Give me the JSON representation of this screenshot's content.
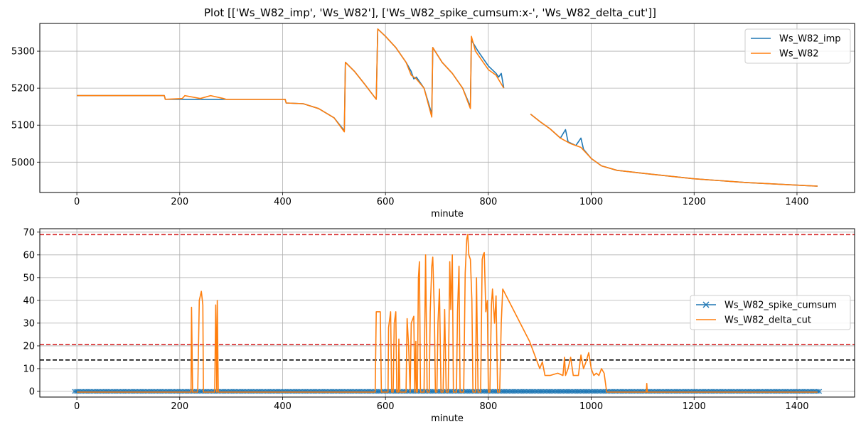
{
  "figure_title": "Plot [['Ws_W82_imp', 'Ws_W82'], ['Ws_W82_spike_cumsum:x-', 'Ws_W82_delta_cut']]",
  "colors": {
    "blue": "#1f77b4",
    "orange": "#ff7f0e",
    "red": "#d62728",
    "black": "#000000",
    "grid": "#b0b0b0"
  },
  "chart_data": [
    {
      "type": "line",
      "xlabel": "minute",
      "ylabel": "",
      "xlim": [
        -72,
        1512
      ],
      "ylim": [
        4918,
        5375
      ],
      "xticks": [
        0,
        200,
        400,
        600,
        800,
        1000,
        1200,
        1400
      ],
      "yticks": [
        5000,
        5100,
        5200,
        5300
      ],
      "grid": true,
      "legend": "top-right",
      "series": [
        {
          "name": "Ws_W82_imp",
          "color": "#1f77b4",
          "points": [
            [
              0,
              5180
            ],
            [
              170,
              5180
            ],
            [
              172,
              5170
            ],
            [
              405,
              5170
            ],
            [
              407,
              5160
            ],
            [
              440,
              5158
            ],
            [
              470,
              5145
            ],
            [
              500,
              5120
            ],
            [
              520,
              5085
            ],
            [
              522,
              5270
            ],
            [
              540,
              5245
            ],
            [
              560,
              5210
            ],
            [
              582,
              5170
            ],
            [
              585,
              5360
            ],
            [
              600,
              5340
            ],
            [
              620,
              5310
            ],
            [
              640,
              5270
            ],
            [
              650,
              5245
            ],
            [
              655,
              5225
            ],
            [
              660,
              5230
            ],
            [
              675,
              5200
            ],
            [
              690,
              5130
            ],
            [
              692,
              5310
            ],
            [
              710,
              5270
            ],
            [
              730,
              5240
            ],
            [
              750,
              5200
            ],
            [
              765,
              5150
            ],
            [
              767,
              5330
            ],
            [
              780,
              5300
            ],
            [
              800,
              5260
            ],
            [
              815,
              5240
            ],
            [
              820,
              5230
            ],
            [
              825,
              5240
            ],
            [
              830,
              5200
            ],
            [
              832,
              null
            ],
            [
              880,
              null
            ],
            [
              882,
              5130
            ],
            [
              900,
              5110
            ],
            [
              920,
              5090
            ],
            [
              940,
              5065
            ],
            [
              950,
              5088
            ],
            [
              955,
              5055
            ],
            [
              970,
              5045
            ],
            [
              980,
              5065
            ],
            [
              985,
              5035
            ],
            [
              1000,
              5010
            ],
            [
              1020,
              4990
            ],
            [
              1050,
              4978
            ],
            [
              1100,
              4970
            ],
            [
              1200,
              4955
            ],
            [
              1300,
              4945
            ],
            [
              1440,
              4935
            ]
          ]
        },
        {
          "name": "Ws_W82",
          "color": "#ff7f0e",
          "points": [
            [
              0,
              5180
            ],
            [
              170,
              5180
            ],
            [
              172,
              5170
            ],
            [
              205,
              5172
            ],
            [
              210,
              5180
            ],
            [
              240,
              5172
            ],
            [
              260,
              5180
            ],
            [
              285,
              5172
            ],
            [
              290,
              5170
            ],
            [
              405,
              5170
            ],
            [
              407,
              5160
            ],
            [
              440,
              5158
            ],
            [
              470,
              5145
            ],
            [
              500,
              5120
            ],
            [
              520,
              5082
            ],
            [
              522,
              5270
            ],
            [
              540,
              5245
            ],
            [
              560,
              5210
            ],
            [
              582,
              5170
            ],
            [
              585,
              5360
            ],
            [
              600,
              5340
            ],
            [
              620,
              5310
            ],
            [
              640,
              5270
            ],
            [
              650,
              5235
            ],
            [
              660,
              5225
            ],
            [
              675,
              5200
            ],
            [
              690,
              5122
            ],
            [
              692,
              5310
            ],
            [
              710,
              5270
            ],
            [
              730,
              5240
            ],
            [
              750,
              5200
            ],
            [
              765,
              5145
            ],
            [
              767,
              5340
            ],
            [
              775,
              5300
            ],
            [
              790,
              5270
            ],
            [
              800,
              5250
            ],
            [
              815,
              5235
            ],
            [
              830,
              5200
            ],
            [
              832,
              null
            ],
            [
              880,
              null
            ],
            [
              882,
              5130
            ],
            [
              900,
              5110
            ],
            [
              920,
              5090
            ],
            [
              940,
              5065
            ],
            [
              960,
              5050
            ],
            [
              980,
              5040
            ],
            [
              1000,
              5010
            ],
            [
              1020,
              4990
            ],
            [
              1050,
              4978
            ],
            [
              1100,
              4970
            ],
            [
              1200,
              4955
            ],
            [
              1300,
              4945
            ],
            [
              1440,
              4935
            ]
          ]
        }
      ]
    },
    {
      "type": "line",
      "xlabel": "minute",
      "ylabel": "",
      "xlim": [
        -72,
        1512
      ],
      "ylim": [
        -2.5,
        71.5
      ],
      "xticks": [
        0,
        200,
        400,
        600,
        800,
        1000,
        1200,
        1400
      ],
      "yticks": [
        0,
        10,
        20,
        30,
        40,
        50,
        60,
        70
      ],
      "grid": true,
      "legend": "center-right",
      "hlines": [
        {
          "y": 68.9,
          "color": "#d62728",
          "style": "dashed"
        },
        {
          "y": 20.6,
          "color": "#d62728",
          "style": "dashed"
        },
        {
          "y": 13.8,
          "color": "#000000",
          "style": "dashed"
        }
      ],
      "series": [
        {
          "name": "Ws_W82_spike_cumsum",
          "color": "#1f77b4",
          "marker": "x",
          "x_range": [
            -5,
            1445
          ],
          "y": 0
        },
        {
          "name": "Ws_W82_delta_cut",
          "color": "#ff7f0e",
          "points": [
            [
              0,
              -0.3
            ],
            [
              222,
              -0.3
            ],
            [
              223,
              37
            ],
            [
              225,
              -0.3
            ],
            [
              235,
              -0.3
            ],
            [
              238,
              40
            ],
            [
              242,
              44
            ],
            [
              245,
              38
            ],
            [
              246,
              -0.3
            ],
            [
              268,
              -0.3
            ],
            [
              270,
              38
            ],
            [
              272,
              -0.3
            ],
            [
              273,
              40
            ],
            [
              275,
              -0.3
            ],
            [
              580,
              -0.3
            ],
            [
              582,
              35
            ],
            [
              590,
              35
            ],
            [
              592,
              -0.3
            ],
            [
              605,
              -0.3
            ],
            [
              606,
              28
            ],
            [
              610,
              35
            ],
            [
              612,
              -0.3
            ],
            [
              615,
              -0.3
            ],
            [
              617,
              30
            ],
            [
              620,
              35
            ],
            [
              622,
              -0.3
            ],
            [
              625,
              -0.3
            ],
            [
              626,
              23
            ],
            [
              628,
              -0.3
            ],
            [
              640,
              -0.3
            ],
            [
              642,
              32
            ],
            [
              645,
              20
            ],
            [
              648,
              -0.3
            ],
            [
              650,
              30
            ],
            [
              655,
              33
            ],
            [
              657,
              -0.3
            ],
            [
              659,
              22
            ],
            [
              660,
              -0.3
            ],
            [
              662,
              -0.3
            ],
            [
              664,
              50
            ],
            [
              666,
              57
            ],
            [
              668,
              -0.3
            ],
            [
              675,
              -0.3
            ],
            [
              678,
              60
            ],
            [
              681,
              -0.3
            ],
            [
              685,
              -0.3
            ],
            [
              687,
              35
            ],
            [
              690,
              55
            ],
            [
              692,
              59
            ],
            [
              695,
              35
            ],
            [
              697,
              -0.3
            ],
            [
              700,
              -0.3
            ],
            [
              702,
              30
            ],
            [
              705,
              45
            ],
            [
              708,
              -0.3
            ],
            [
              712,
              -0.3
            ],
            [
              715,
              36
            ],
            [
              718,
              -0.3
            ],
            [
              722,
              -0.3
            ],
            [
              725,
              57
            ],
            [
              727,
              36
            ],
            [
              730,
              60
            ],
            [
              732,
              -0.3
            ],
            [
              738,
              -0.3
            ],
            [
              740,
              35
            ],
            [
              743,
              55
            ],
            [
              745,
              -0.3
            ],
            [
              752,
              -0.3
            ],
            [
              755,
              52
            ],
            [
              758,
              67
            ],
            [
              760,
              69
            ],
            [
              762,
              60
            ],
            [
              765,
              58
            ],
            [
              768,
              40
            ],
            [
              770,
              -0.3
            ],
            [
              775,
              -0.3
            ],
            [
              777,
              50
            ],
            [
              780,
              -0.3
            ],
            [
              785,
              -0.3
            ],
            [
              788,
              58
            ],
            [
              790,
              60
            ],
            [
              792,
              61
            ],
            [
              795,
              35
            ],
            [
              798,
              40
            ],
            [
              800,
              -0.3
            ],
            [
              803,
              -0.3
            ],
            [
              806,
              38
            ],
            [
              808,
              45
            ],
            [
              812,
              30
            ],
            [
              815,
              42
            ],
            [
              818,
              -0.3
            ],
            [
              822,
              -0.3
            ],
            [
              825,
              30
            ],
            [
              828,
              45
            ],
            [
              880,
              22
            ],
            [
              900,
              10
            ],
            [
              905,
              13
            ],
            [
              910,
              7
            ],
            [
              920,
              7
            ],
            [
              935,
              8
            ],
            [
              945,
              7
            ],
            [
              948,
              15
            ],
            [
              950,
              7
            ],
            [
              955,
              10
            ],
            [
              960,
              15
            ],
            [
              965,
              7
            ],
            [
              975,
              7
            ],
            [
              980,
              16
            ],
            [
              985,
              10
            ],
            [
              990,
              13
            ],
            [
              995,
              17
            ],
            [
              1000,
              10
            ],
            [
              1005,
              7
            ],
            [
              1010,
              8
            ],
            [
              1015,
              7
            ],
            [
              1020,
              10
            ],
            [
              1025,
              8
            ],
            [
              1030,
              -0.3
            ],
            [
              1107,
              -0.3
            ],
            [
              1108,
              3.5
            ],
            [
              1109,
              -0.3
            ],
            [
              1440,
              -0.3
            ]
          ]
        }
      ]
    }
  ]
}
